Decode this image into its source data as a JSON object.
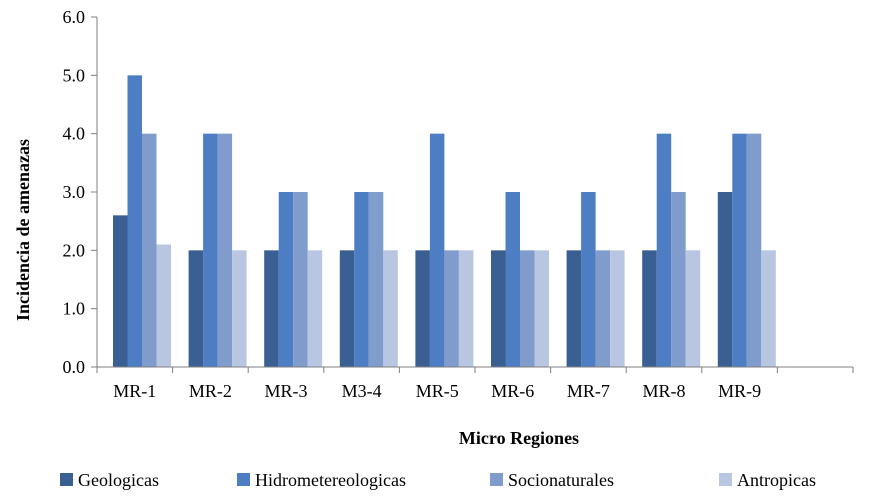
{
  "chart_data": {
    "type": "bar",
    "xlabel": "Micro Regiones",
    "ylabel": "Incidencia de amenazas",
    "ylim": [
      0,
      6
    ],
    "y_ticks": [
      "0.0",
      "1.0",
      "2.0",
      "3.0",
      "4.0",
      "5.0",
      "6.0"
    ],
    "categories": [
      "MR-1",
      "MR-2",
      "MR-3",
      "M3-4",
      "MR-5",
      "MR-6",
      "MR-7",
      "MR-8",
      "MR-9"
    ],
    "grid": false,
    "legend_position": "bottom",
    "series": [
      {
        "name": "Geologicas",
        "color": "#3a5f93",
        "values": [
          2.6,
          2.0,
          2.0,
          2.0,
          2.0,
          2.0,
          2.0,
          2.0,
          3.0
        ]
      },
      {
        "name": "Hidrometereologicas",
        "color": "#4d7dc2",
        "values": [
          5.0,
          4.0,
          3.0,
          3.0,
          4.0,
          3.0,
          3.0,
          4.0,
          4.0
        ]
      },
      {
        "name": "Socionaturales",
        "color": "#7f9ccc",
        "values": [
          4.0,
          4.0,
          3.0,
          3.0,
          2.0,
          2.0,
          2.0,
          3.0,
          4.0
        ]
      },
      {
        "name": "Antropicas",
        "color": "#b8c6e2",
        "values": [
          2.1,
          2.0,
          2.0,
          2.0,
          2.0,
          2.0,
          2.0,
          2.0,
          2.0
        ]
      }
    ]
  }
}
